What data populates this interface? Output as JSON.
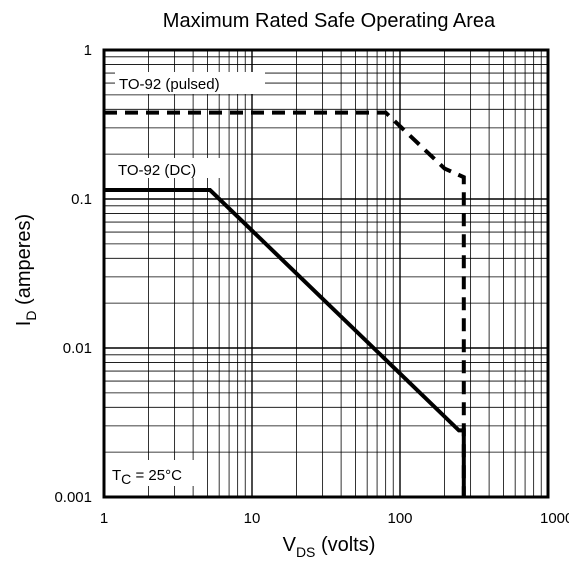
{
  "chart_data": {
    "type": "line",
    "title": "Maximum Rated Safe Operating Area",
    "xlabel": {
      "main": "V",
      "sub": "DS",
      "rest": " (volts)"
    },
    "ylabel": {
      "main": "I",
      "sub": "D",
      "rest": " (amperes)"
    },
    "x_scale": "log",
    "y_scale": "log",
    "xlim": [
      1,
      1000
    ],
    "ylim": [
      0.001,
      1
    ],
    "x_ticks": [
      {
        "value": 1,
        "label": "1"
      },
      {
        "value": 10,
        "label": "10"
      },
      {
        "value": 100,
        "label": "100"
      },
      {
        "value": 1000,
        "label": "1000"
      }
    ],
    "y_ticks": [
      {
        "value": 1,
        "label": "1"
      },
      {
        "value": 0.1,
        "label": "0.1"
      },
      {
        "value": 0.01,
        "label": "0.01"
      },
      {
        "value": 0.001,
        "label": "0.001"
      }
    ],
    "grid": true,
    "series": [
      {
        "name": "TO-92 (pulsed)",
        "style": "dashed",
        "color": "#000000",
        "points": [
          [
            1,
            0.38
          ],
          [
            80,
            0.38
          ],
          [
            200,
            0.16
          ],
          [
            270,
            0.14
          ],
          [
            270,
            0.001
          ]
        ]
      },
      {
        "name": "TO-92 (DC)",
        "style": "solid",
        "color": "#000000",
        "points": [
          [
            1,
            0.115
          ],
          [
            5.2,
            0.115
          ],
          [
            250,
            0.0028
          ],
          [
            270,
            0.0028
          ],
          [
            270,
            0.001
          ]
        ]
      }
    ],
    "annotation": {
      "main": "T",
      "sub": "C",
      "rest": " = 25°C"
    }
  }
}
